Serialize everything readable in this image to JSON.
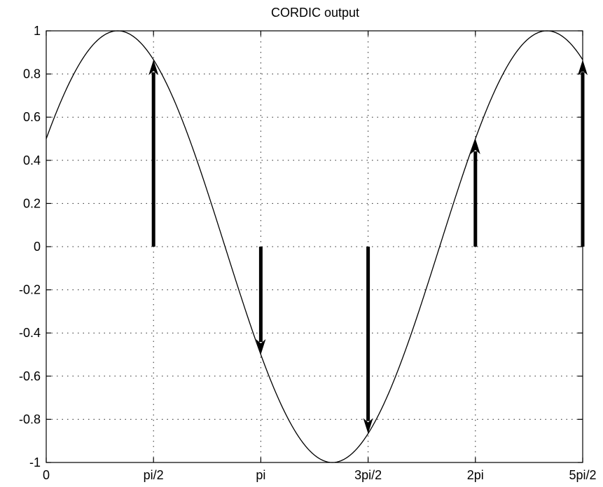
{
  "chart_data": {
    "type": "line",
    "title": "CORDIC output",
    "xlabel": "",
    "ylabel": "",
    "xlim": [
      0,
      7.853982
    ],
    "ylim": [
      -1,
      1
    ],
    "grid": true,
    "x_ticks": [
      {
        "value": 0,
        "label": "0"
      },
      {
        "value": 1.570796,
        "label": "pi/2"
      },
      {
        "value": 3.141593,
        "label": "pi"
      },
      {
        "value": 4.712389,
        "label": "3pi/2"
      },
      {
        "value": 6.283185,
        "label": "2pi"
      },
      {
        "value": 7.853982,
        "label": "5pi/2"
      }
    ],
    "y_ticks": [
      {
        "value": 1,
        "label": "1"
      },
      {
        "value": 0.8,
        "label": "0.8"
      },
      {
        "value": 0.6,
        "label": "0.6"
      },
      {
        "value": 0.4,
        "label": "0.4"
      },
      {
        "value": 0.2,
        "label": "0.2"
      },
      {
        "value": 0,
        "label": "0"
      },
      {
        "value": -0.2,
        "label": "-0.2"
      },
      {
        "value": -0.4,
        "label": "-0.4"
      },
      {
        "value": -0.6,
        "label": "-0.6"
      },
      {
        "value": -0.8,
        "label": "-0.8"
      },
      {
        "value": -1,
        "label": "-1"
      }
    ],
    "curve": {
      "function": "sin(x + pi/6)",
      "amplitude": 1,
      "phase": 0.523599,
      "samples": 240
    },
    "arrows": [
      {
        "x": 1.570796,
        "y": 0.866
      },
      {
        "x": 3.141593,
        "y": -0.5
      },
      {
        "x": 4.712389,
        "y": -0.866
      },
      {
        "x": 6.283185,
        "y": 0.5
      },
      {
        "x": 7.853982,
        "y": 0.866
      }
    ]
  }
}
